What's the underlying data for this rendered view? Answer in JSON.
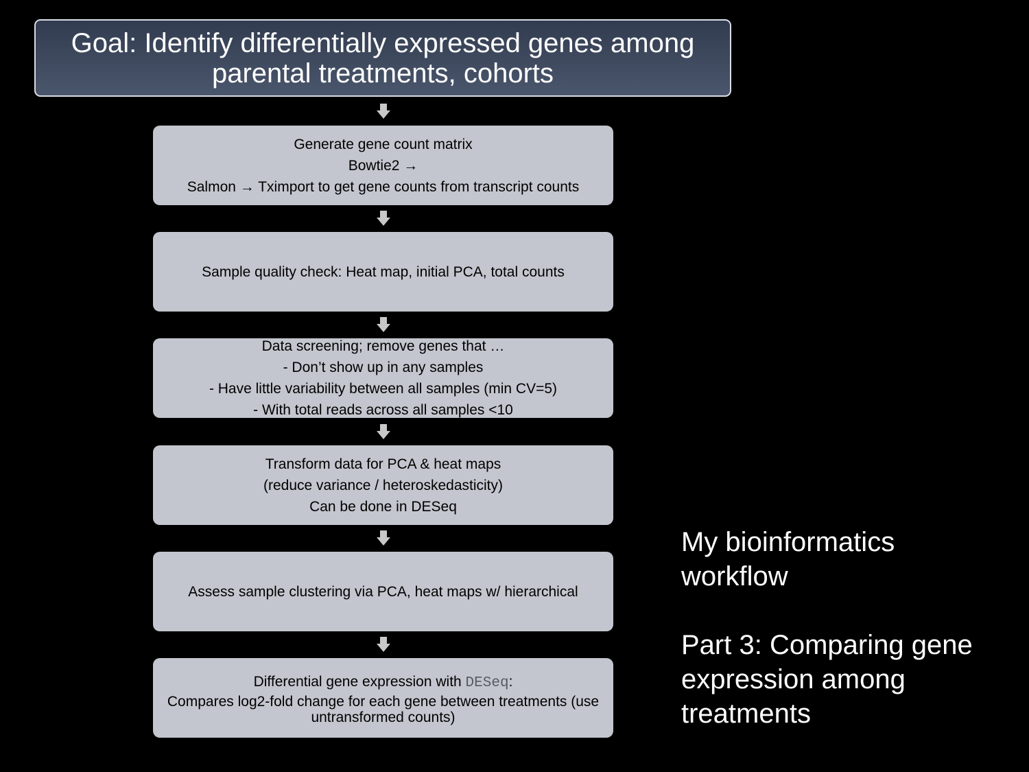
{
  "goal": {
    "line1": "Goal: Identify differentially expressed genes among",
    "line2": "parental treatments, cohorts"
  },
  "steps": [
    {
      "lines": [
        "Generate gene count matrix",
        "Bowtie2 →",
        "Salmon → Tximport to get gene counts from transcript counts"
      ]
    },
    {
      "lines": [
        "Sample quality check: Heat map, initial PCA, total counts"
      ]
    },
    {
      "lines": [
        "Data screening; remove genes that …",
        "- Don’t show up in any samples",
        "- Have little variability between all samples (min CV=5)",
        "- With total reads across all samples <10"
      ]
    },
    {
      "lines": [
        "Transform data for PCA & heat maps",
        "(reduce variance / heteroskedasticity)",
        "Can be done in DESeq"
      ]
    },
    {
      "lines": [
        "Assess sample clustering via PCA, heat maps w/ hierarchical"
      ]
    },
    {
      "line1_prefix": "Differential gene expression with ",
      "line1_code": "DESeq",
      "line1_suffix": ":",
      "line2": "Compares log2-fold change for each gene between treatments (use untransformed counts)"
    }
  ],
  "side": {
    "title_line1": "My bioinformatics",
    "title_line2": "workflow",
    "part_line1": "Part 3: Comparing gene",
    "part_line2": "expression among",
    "part_line3": "treatments"
  },
  "colors": {
    "background": "#000000",
    "goal_fill_top": "#323c50",
    "goal_fill_bottom": "#4a566c",
    "step_fill": "#c3c6ce",
    "arrow": "#c8c8c8"
  }
}
